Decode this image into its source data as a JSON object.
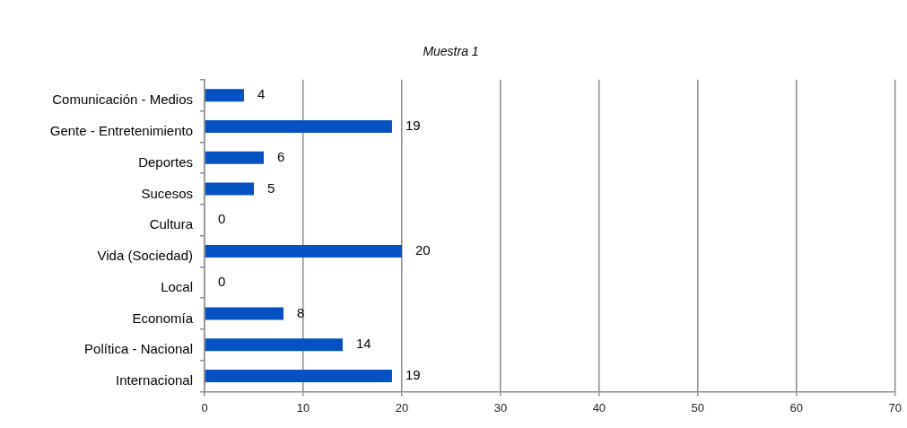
{
  "chart_data": {
    "type": "bar",
    "orientation": "horizontal",
    "subtitle": "Muestra 1",
    "categories": [
      "Comunicación - Medios",
      "Gente - Entretenimiento",
      "Deportes",
      "Sucesos",
      "Cultura",
      "Vida (Sociedad)",
      "Local",
      "Economía",
      "Política - Nacional",
      "Internacional"
    ],
    "values": [
      4,
      19,
      6,
      5,
      0,
      20,
      0,
      8,
      14,
      19
    ],
    "color": "#0451c1",
    "xlim": [
      0,
      70
    ],
    "xticks": [
      0,
      10,
      20,
      30,
      40,
      50,
      60,
      70
    ],
    "grid": "x",
    "data_labels": true
  }
}
